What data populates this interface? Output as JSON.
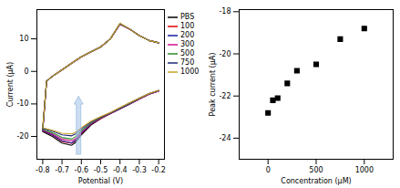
{
  "chart_data": [
    {
      "type": "line",
      "x_label": "Potential (V)",
      "y_label": "Current (µA)",
      "x": [
        -0.2,
        -0.25,
        -0.3,
        -0.35,
        -0.4,
        -0.45,
        -0.5,
        -0.55,
        -0.6,
        -0.63,
        -0.65,
        -0.7,
        -0.75,
        -0.8,
        -0.78,
        -0.75,
        -0.7,
        -0.65,
        -0.6,
        -0.55,
        -0.5,
        -0.45,
        -0.4,
        -0.35,
        -0.3,
        -0.25,
        -0.2
      ],
      "series": [
        {
          "name": "PBS",
          "color": "#000000",
          "values": [
            -6,
            -7,
            -8.5,
            -10,
            -11.5,
            -13,
            -14.5,
            -16.5,
            -19.5,
            -21.8,
            -22.7,
            -22,
            -20,
            -18.5,
            -3,
            -1.5,
            0.5,
            2.5,
            4.5,
            6,
            7.5,
            10,
            14.5,
            13,
            11,
            9.5,
            8.8
          ]
        },
        {
          "name": "100",
          "color": "#e00000",
          "values": [
            -6,
            -7,
            -8.5,
            -10,
            -11.5,
            -13,
            -14.5,
            -16.3,
            -19.2,
            -21.3,
            -22.1,
            -21.5,
            -19.6,
            -18.3,
            -3,
            -1.5,
            0.5,
            2.5,
            4.5,
            6,
            7.5,
            10,
            14.6,
            13,
            11,
            9.5,
            8.8
          ]
        },
        {
          "name": "200",
          "color": "#1a1aa0",
          "values": [
            -6,
            -7,
            -8.5,
            -10,
            -11.5,
            -13,
            -14.4,
            -16.2,
            -19,
            -21.2,
            -22,
            -21.3,
            -19.5,
            -18.2,
            -3,
            -1.5,
            0.5,
            2.5,
            4.5,
            6,
            7.5,
            10,
            14.6,
            13,
            11,
            9.5,
            8.8
          ]
        },
        {
          "name": "300",
          "color": "#d0108a",
          "values": [
            -6,
            -7,
            -8.4,
            -9.9,
            -11.4,
            -12.9,
            -14.3,
            -16,
            -18.7,
            -20.7,
            -21.4,
            -20.8,
            -19.2,
            -18,
            -3,
            -1.5,
            0.5,
            2.5,
            4.5,
            6,
            7.5,
            10,
            14.6,
            13,
            11,
            9.5,
            8.8
          ]
        },
        {
          "name": "500",
          "color": "#2e8b2e",
          "values": [
            -5.9,
            -6.9,
            -8.3,
            -9.8,
            -11.3,
            -12.8,
            -14.2,
            -15.8,
            -18.3,
            -20.1,
            -20.8,
            -20.3,
            -18.9,
            -17.8,
            -3,
            -1.5,
            0.5,
            2.5,
            4.5,
            6,
            7.5,
            10,
            14.7,
            13,
            11,
            9.5,
            8.8
          ]
        },
        {
          "name": "750",
          "color": "#1c2a7a",
          "values": [
            -5.8,
            -6.8,
            -8.2,
            -9.7,
            -11.2,
            -12.7,
            -14,
            -15.5,
            -17.7,
            -19.2,
            -19.8,
            -19.5,
            -18.4,
            -17.5,
            -3,
            -1.5,
            0.5,
            2.5,
            4.5,
            6,
            7.5,
            10,
            14.7,
            13,
            11,
            9.5,
            8.8
          ]
        },
        {
          "name": "1000",
          "color": "#c9a227",
          "values": [
            -5.8,
            -6.8,
            -8.2,
            -9.6,
            -11.1,
            -12.6,
            -13.9,
            -15.3,
            -17.3,
            -18.7,
            -19.2,
            -19,
            -18.1,
            -17.3,
            -3,
            -1.5,
            0.5,
            2.5,
            4.5,
            6,
            7.5,
            10,
            14.8,
            13,
            11,
            9.5,
            8.8
          ]
        }
      ],
      "xlim": [
        -0.83,
        -0.17
      ],
      "ylim": [
        -27,
        19
      ],
      "xticks": [
        -0.8,
        -0.7,
        -0.6,
        -0.5,
        -0.4,
        -0.3,
        -0.2
      ],
      "yticks": [
        -20,
        -10,
        0,
        10
      ],
      "legend": "right",
      "grid": false
    },
    {
      "type": "scatter",
      "x_label": "Concentration (µM)",
      "y_label": "Peak current (µA)",
      "x": [
        0,
        50,
        100,
        200,
        300,
        500,
        750,
        1000
      ],
      "values": [
        -22.8,
        -22.2,
        -22.1,
        -21.4,
        -20.8,
        -20.5,
        -19.3,
        -18.8
      ],
      "color": "#000000",
      "marker": "square",
      "xlim": [
        -300,
        1300
      ],
      "ylim": [
        -25,
        -17.9
      ],
      "xticks": [
        0,
        500,
        1000
      ],
      "yticks": [
        -24,
        -22,
        -20,
        -18
      ],
      "grid": false
    }
  ]
}
